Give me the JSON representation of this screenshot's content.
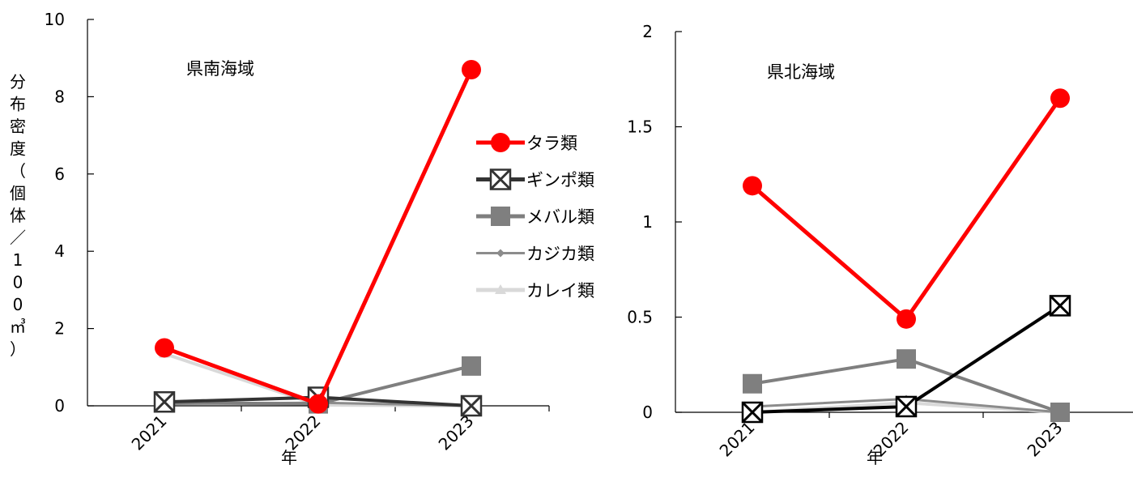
{
  "chart_data": [
    {
      "type": "line",
      "title": "県南海域",
      "xlabel": "年",
      "ylabel": "分布密度（個体／100㎥）",
      "categories": [
        "2021",
        "2022",
        "2023"
      ],
      "ylim": [
        0,
        10
      ],
      "yticks": [
        0,
        2,
        4,
        6,
        8,
        10
      ],
      "series": [
        {
          "name": "タラ類",
          "values": [
            1.5,
            0.05,
            8.7
          ],
          "color": "#ff0000",
          "marker": "circle"
        },
        {
          "name": "ギンポ類",
          "values": [
            0.1,
            0.22,
            0.0
          ],
          "color": "#333333",
          "marker": "x-square"
        },
        {
          "name": "メバル類",
          "values": [
            0.08,
            0.05,
            1.03
          ],
          "color": "#7f7f7f",
          "marker": "square"
        },
        {
          "name": "カジカ類",
          "values": [
            0.05,
            0.08,
            0.0
          ],
          "color": "#8c8c8c",
          "marker": "diamond"
        },
        {
          "name": "カレイ類",
          "values": [
            1.35,
            0.02,
            0.0
          ],
          "color": "#d9d9d9",
          "marker": "triangle"
        }
      ]
    },
    {
      "type": "line",
      "title": "県北海域",
      "xlabel": "年",
      "ylabel": "",
      "categories": [
        "2021",
        "2022",
        "2023"
      ],
      "ylim": [
        0,
        2
      ],
      "yticks": [
        0,
        0.5,
        1,
        1.5,
        2
      ],
      "series": [
        {
          "name": "タラ類",
          "values": [
            1.19,
            0.49,
            1.65
          ],
          "color": "#ff0000",
          "marker": "circle"
        },
        {
          "name": "ギンポ類",
          "values": [
            0.0,
            0.03,
            0.56
          ],
          "color": "#000000",
          "marker": "x-square"
        },
        {
          "name": "メバル類",
          "values": [
            0.15,
            0.28,
            0.0
          ],
          "color": "#7f7f7f",
          "marker": "square"
        },
        {
          "name": "カジカ類",
          "values": [
            0.03,
            0.07,
            0.0
          ],
          "color": "#8c8c8c",
          "marker": "diamond"
        },
        {
          "name": "カレイ類",
          "values": [
            0.0,
            0.05,
            0.0
          ],
          "color": "#d9d9d9",
          "marker": "triangle"
        }
      ]
    }
  ],
  "legend": {
    "items": [
      "タラ類",
      "ギンポ類",
      "メバル類",
      "カジカ類",
      "カレイ類"
    ],
    "placement": "right of first chart"
  }
}
